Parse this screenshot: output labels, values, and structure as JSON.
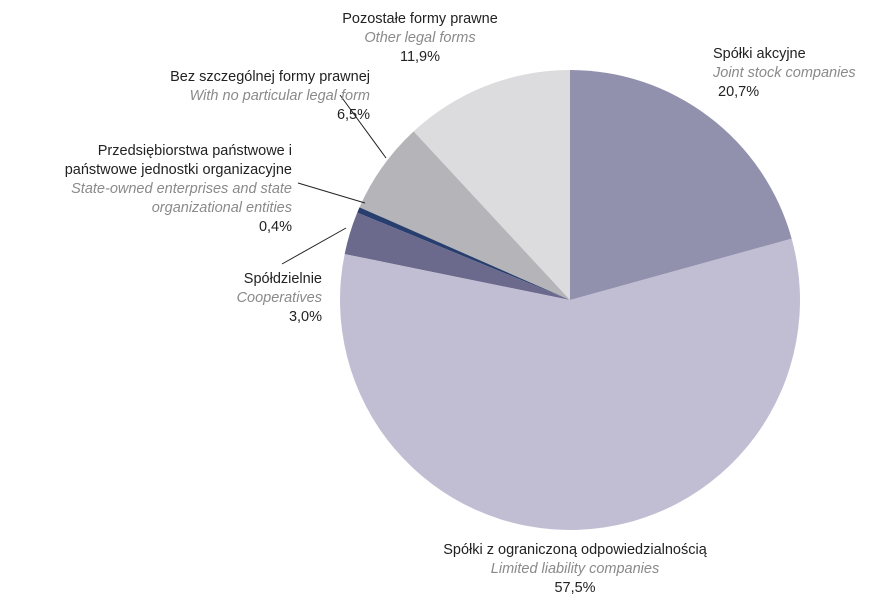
{
  "chart_data": {
    "type": "pie",
    "categories": [
      "Spółki akcyjne",
      "Spółki z ograniczoną odpowiedzialnością",
      "Spółdzielnie",
      "Przedsiębiorstwa państwowe i państwowe jednostki organizacyjne",
      "Bez szczególnej formy prawnej",
      "Pozostałe formy prawne"
    ],
    "categories_en": [
      "Joint stock companies",
      "Limited liability companies",
      "Cooperatives",
      "State-owned enterprises and state organizational entities",
      "With no particular legal form",
      "Other legal forms"
    ],
    "values": [
      20.7,
      57.5,
      3.0,
      0.4,
      6.5,
      11.9
    ],
    "value_labels": [
      "20,7%",
      "57,5%",
      "3,0%",
      "0,4%",
      "6,5%",
      "11,9%"
    ],
    "colors": [
      "#9190ad",
      "#c1bed4",
      "#6b6a8d",
      "#283e6e",
      "#b4b4b9",
      "#dcdcde"
    ]
  }
}
